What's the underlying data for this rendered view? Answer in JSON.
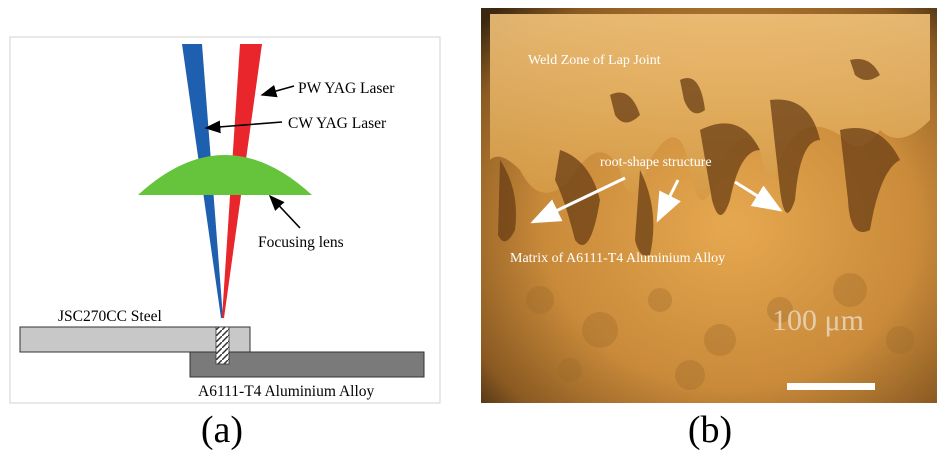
{
  "panel_a": {
    "labels": {
      "pw_laser": "PW YAG Laser",
      "cw_laser": "CW YAG Laser",
      "lens": "Focusing lens",
      "steel": "JSC270CC Steel",
      "alloy": "A6111-T4 Aluminium Alloy"
    },
    "caption": "(a)",
    "colors": {
      "pw_beam": "#e8262b",
      "cw_beam": "#1f5fb0",
      "lens": "#66c33c",
      "steel": "#c8c8c8",
      "alloy": "#7a7a7a"
    }
  },
  "panel_b": {
    "labels": {
      "weld_zone": "Weld Zone of Lap Joint",
      "root": "root-shape structure",
      "matrix": "Matrix of A6111-T4 Aluminium Alloy",
      "scale": "100 μm"
    },
    "caption": "(b)"
  }
}
